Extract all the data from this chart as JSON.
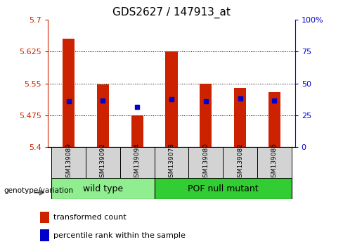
{
  "title": "GDS2627 / 147913_at",
  "samples": [
    "GSM139089",
    "GSM139092",
    "GSM139094",
    "GSM139078",
    "GSM139080",
    "GSM139082",
    "GSM139086"
  ],
  "groups": [
    "wild type",
    "wild type",
    "wild type",
    "POF null mutant",
    "POF null mutant",
    "POF null mutant",
    "POF null mutant"
  ],
  "transformed_counts": [
    5.655,
    5.548,
    5.475,
    5.625,
    5.55,
    5.54,
    5.53
  ],
  "percentile_ranks": [
    5.508,
    5.51,
    5.495,
    5.513,
    5.508,
    5.515,
    5.51
  ],
  "y_min": 5.4,
  "y_max": 5.7,
  "y_ticks": [
    5.4,
    5.475,
    5.55,
    5.625,
    5.7
  ],
  "y_tick_labels": [
    "5.4",
    "5.475",
    "5.55",
    "5.625",
    "5.7"
  ],
  "right_y_ticks": [
    0,
    25,
    50,
    75,
    100
  ],
  "right_y_labels": [
    "0",
    "25",
    "50",
    "75",
    "100%"
  ],
  "bar_color": "#CC2200",
  "dot_color": "#0000CC",
  "group1_color": "#90EE90",
  "group2_color": "#32CD32",
  "left_tick_color": "#CC2200",
  "right_tick_color": "#0000CC",
  "grid_color": "#000000",
  "genotype_label": "genotype/variation",
  "group_names": [
    "wild type",
    "POF null mutant"
  ],
  "legend_items": [
    "transformed count",
    "percentile rank within the sample"
  ],
  "wt_count": 3,
  "pof_count": 4
}
